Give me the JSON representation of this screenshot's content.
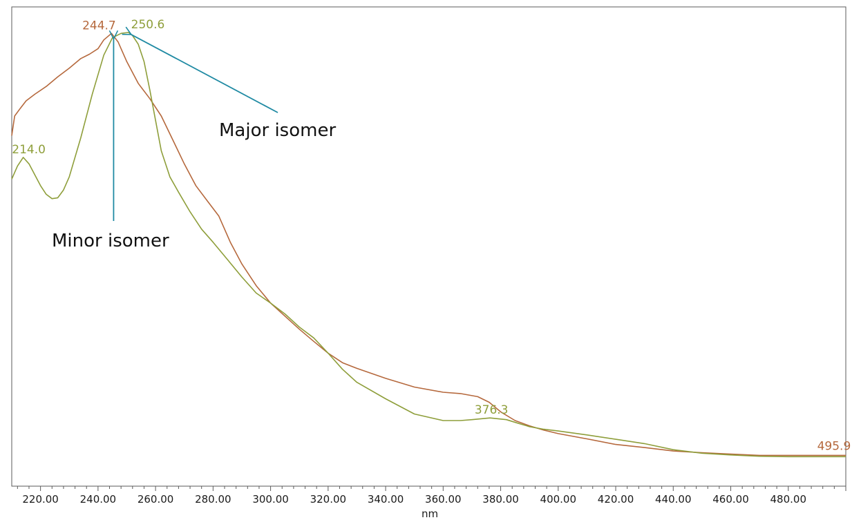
{
  "chart_data": {
    "type": "line",
    "xlabel": "nm",
    "ylabel": "",
    "xlim": [
      210,
      500
    ],
    "ylim": [
      0,
      1
    ],
    "xticks": [
      "220.00",
      "240.00",
      "260.00",
      "280.00",
      "300.00",
      "320.00",
      "340.00",
      "360.00",
      "380.00",
      "400.00",
      "420.00",
      "440.00",
      "460.00",
      "480.00"
    ],
    "grid": false,
    "series": [
      {
        "color": "#b5683c",
        "x": [
          210,
          211,
          213,
          215,
          218,
          222,
          226,
          230,
          234,
          237,
          240,
          242,
          244.7,
          247,
          250,
          254,
          258,
          262,
          266,
          270,
          274,
          278,
          282,
          286,
          290,
          295,
          300,
          305,
          310,
          315,
          320,
          325,
          330,
          340,
          350,
          360,
          366,
          372,
          376,
          380,
          385,
          390,
          395,
          400,
          410,
          420,
          430,
          440,
          450,
          460,
          470,
          480,
          490,
          500
        ],
        "y": [
          0.755,
          0.8,
          0.818,
          0.835,
          0.85,
          0.868,
          0.89,
          0.91,
          0.932,
          0.942,
          0.955,
          0.975,
          0.99,
          0.97,
          0.925,
          0.875,
          0.84,
          0.8,
          0.745,
          0.69,
          0.64,
          0.605,
          0.57,
          0.51,
          0.46,
          0.41,
          0.37,
          0.34,
          0.31,
          0.282,
          0.255,
          0.233,
          0.22,
          0.197,
          0.177,
          0.165,
          0.162,
          0.155,
          0.142,
          0.12,
          0.1,
          0.088,
          0.078,
          0.07,
          0.058,
          0.045,
          0.038,
          0.03,
          0.026,
          0.023,
          0.02,
          0.02,
          0.02,
          0.02
        ]
      },
      {
        "color": "#8e9e3a",
        "x": [
          210,
          212,
          214,
          216,
          218,
          220,
          222,
          224,
          226,
          228,
          230,
          234,
          238,
          242,
          245,
          248,
          250.6,
          252,
          254,
          256,
          258,
          260,
          262,
          265,
          268,
          272,
          276,
          280,
          285,
          290,
          295,
          300,
          305,
          310,
          315,
          320,
          325,
          330,
          340,
          350,
          360,
          366,
          370,
          376.3,
          382,
          386,
          390,
          395,
          400,
          410,
          420,
          430,
          440,
          450,
          460,
          470,
          480,
          490,
          500
        ],
        "y": [
          0.655,
          0.685,
          0.705,
          0.69,
          0.665,
          0.64,
          0.62,
          0.61,
          0.612,
          0.63,
          0.66,
          0.75,
          0.85,
          0.94,
          0.98,
          0.99,
          0.992,
          0.985,
          0.965,
          0.925,
          0.86,
          0.79,
          0.72,
          0.66,
          0.625,
          0.58,
          0.54,
          0.51,
          0.47,
          0.43,
          0.393,
          0.37,
          0.345,
          0.315,
          0.29,
          0.255,
          0.218,
          0.188,
          0.15,
          0.115,
          0.1,
          0.1,
          0.102,
          0.106,
          0.102,
          0.094,
          0.086,
          0.08,
          0.076,
          0.067,
          0.057,
          0.047,
          0.033,
          0.025,
          0.021,
          0.018,
          0.017,
          0.017,
          0.017
        ]
      }
    ],
    "peak_labels": [
      {
        "text": "244.7",
        "x": 244.7,
        "y": 0.99,
        "color": "#b5683c"
      },
      {
        "text": "250.6",
        "x": 250.6,
        "y": 0.992,
        "color": "#8e9e3a"
      },
      {
        "text": "214.0",
        "x": 214.0,
        "y": 0.705,
        "color": "#8e9e3a"
      },
      {
        "text": "376.3",
        "x": 376.3,
        "y": 0.106,
        "color": "#8e9e3a"
      },
      {
        "text": "495.9",
        "x": 495.9,
        "y": 0.02,
        "color": "#b5683c"
      }
    ],
    "annotations": [
      {
        "text": "Minor isomer",
        "target_x": 244.7,
        "target_y": 0.99
      },
      {
        "text": "Major isomer",
        "target_x": 250.6,
        "target_y": 0.992
      }
    ],
    "annotation_arrow_color": "#1f8aa3"
  }
}
